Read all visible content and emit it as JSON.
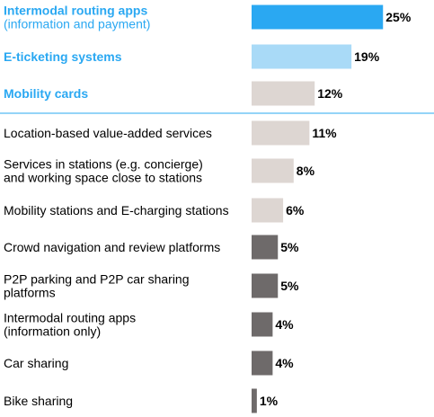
{
  "chart_data": {
    "type": "bar",
    "orientation": "horizontal",
    "title": "",
    "xlabel": "",
    "ylabel": "",
    "xlim": [
      0,
      25
    ],
    "grid": false,
    "legend": "none",
    "value_suffix": "%",
    "categories": [
      [
        "Intermodal routing apps",
        "(information and payment)"
      ],
      [
        "E-ticketing systems"
      ],
      [
        "Mobility cards"
      ],
      [
        "Location-based value-added services"
      ],
      [
        "Services in stations (e.g. concierge)",
        "and working space close to stations"
      ],
      [
        "Mobility stations and E-charging stations"
      ],
      [
        "Crowd navigation and review platforms"
      ],
      [
        "P2P parking and P2P car sharing",
        "platforms"
      ],
      [
        "Intermodal routing apps",
        "(information only)"
      ],
      [
        "Car sharing"
      ],
      [
        "Bike sharing"
      ]
    ],
    "values": [
      25,
      19,
      12,
      11,
      8,
      6,
      5,
      5,
      4,
      4,
      1
    ],
    "bar_colors": [
      "#2aa8f2",
      "#a9daf7",
      "#ddd6d2",
      "#ddd6d2",
      "#ddd6d2",
      "#ddd6d2",
      "#6e6a6a",
      "#6e6a6a",
      "#6e6a6a",
      "#6e6a6a",
      "#6e6a6a"
    ],
    "label_colors": [
      "#2aa8f2",
      "#2aa8f2",
      "#2aa8f2",
      "#000000",
      "#000000",
      "#000000",
      "#000000",
      "#000000",
      "#000000",
      "#000000",
      "#000000"
    ],
    "highlighted": [
      true,
      true,
      true,
      false,
      false,
      false,
      false,
      false,
      false,
      false,
      false
    ],
    "separator_color": "#2aa8f2"
  }
}
